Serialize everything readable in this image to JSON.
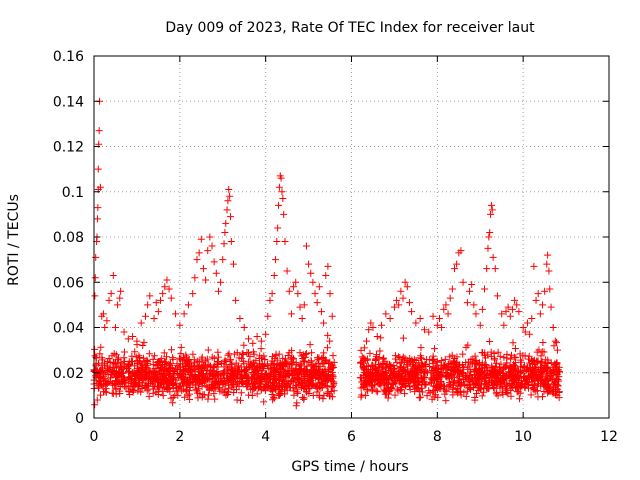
{
  "chart_data": {
    "type": "scatter",
    "title": "Day 009 of 2023, Rate Of TEC Index for receiver laut",
    "xlabel": "GPS time / hours",
    "ylabel": "ROTI / TECUs",
    "xlim": [
      0,
      12
    ],
    "ylim": [
      0,
      0.16
    ],
    "xticks": [
      0,
      2,
      4,
      6,
      8,
      10,
      12
    ],
    "xtick_labels": [
      "0",
      "2",
      "4",
      "6",
      "8",
      "10",
      "12"
    ],
    "yticks": [
      0,
      0.02,
      0.04,
      0.06,
      0.08,
      0.1,
      0.12,
      0.14,
      0.16
    ],
    "ytick_labels": [
      "0",
      "0.02",
      "0.04",
      "0.06",
      "0.08",
      "0.1",
      "0.12",
      "0.14",
      "0.16"
    ],
    "grid": true,
    "marker": "+",
    "color": "#ff0000",
    "data_gap_hours": [
      5.6,
      6.2
    ],
    "series": [
      {
        "name": "ROTI",
        "points": [
          [
            0.02,
            0.054
          ],
          [
            0.03,
            0.062
          ],
          [
            0.04,
            0.071
          ],
          [
            0.06,
            0.078
          ],
          [
            0.07,
            0.08
          ],
          [
            0.08,
            0.088
          ],
          [
            0.09,
            0.093
          ],
          [
            0.1,
            0.101
          ],
          [
            0.1,
            0.11
          ],
          [
            0.11,
            0.121
          ],
          [
            0.12,
            0.127
          ],
          [
            0.13,
            0.14
          ],
          [
            0.15,
            0.102
          ],
          [
            0.18,
            0.045
          ],
          [
            0.22,
            0.046
          ],
          [
            0.25,
            0.04
          ],
          [
            0.3,
            0.043
          ],
          [
            0.35,
            0.052
          ],
          [
            0.4,
            0.055
          ],
          [
            0.45,
            0.063
          ],
          [
            0.5,
            0.04
          ],
          [
            0.55,
            0.05
          ],
          [
            0.6,
            0.053
          ],
          [
            0.62,
            0.056
          ],
          [
            0.7,
            0.038
          ],
          [
            0.8,
            0.035
          ],
          [
            0.9,
            0.036
          ],
          [
            1.0,
            0.034
          ],
          [
            1.1,
            0.042
          ],
          [
            1.2,
            0.045
          ],
          [
            1.25,
            0.05
          ],
          [
            1.3,
            0.054
          ],
          [
            1.4,
            0.044
          ],
          [
            1.45,
            0.051
          ],
          [
            1.5,
            0.047
          ],
          [
            1.55,
            0.052
          ],
          [
            1.6,
            0.055
          ],
          [
            1.65,
            0.058
          ],
          [
            1.7,
            0.061
          ],
          [
            1.75,
            0.057
          ],
          [
            1.8,
            0.053
          ],
          [
            1.9,
            0.046
          ],
          [
            2.0,
            0.041
          ],
          [
            2.1,
            0.046
          ],
          [
            2.2,
            0.05
          ],
          [
            2.3,
            0.055
          ],
          [
            2.35,
            0.062
          ],
          [
            2.4,
            0.07
          ],
          [
            2.45,
            0.073
          ],
          [
            2.5,
            0.079
          ],
          [
            2.55,
            0.066
          ],
          [
            2.6,
            0.061
          ],
          [
            2.65,
            0.074
          ],
          [
            2.7,
            0.08
          ],
          [
            2.75,
            0.076
          ],
          [
            2.8,
            0.069
          ],
          [
            2.85,
            0.064
          ],
          [
            2.9,
            0.056
          ],
          [
            2.95,
            0.06
          ],
          [
            3.0,
            0.07
          ],
          [
            3.03,
            0.077
          ],
          [
            3.05,
            0.082
          ],
          [
            3.07,
            0.086
          ],
          [
            3.1,
            0.092
          ],
          [
            3.12,
            0.096
          ],
          [
            3.14,
            0.101
          ],
          [
            3.16,
            0.098
          ],
          [
            3.18,
            0.089
          ],
          [
            3.2,
            0.078
          ],
          [
            3.25,
            0.068
          ],
          [
            3.3,
            0.052
          ],
          [
            3.4,
            0.044
          ],
          [
            3.5,
            0.04
          ],
          [
            3.6,
            0.035
          ],
          [
            3.7,
            0.033
          ],
          [
            3.8,
            0.036
          ],
          [
            3.9,
            0.034
          ],
          [
            4.0,
            0.037
          ],
          [
            4.05,
            0.045
          ],
          [
            4.1,
            0.052
          ],
          [
            4.15,
            0.055
          ],
          [
            4.2,
            0.063
          ],
          [
            4.23,
            0.07
          ],
          [
            4.26,
            0.078
          ],
          [
            4.28,
            0.084
          ],
          [
            4.3,
            0.094
          ],
          [
            4.32,
            0.102
          ],
          [
            4.34,
            0.107
          ],
          [
            4.36,
            0.106
          ],
          [
            4.38,
            0.1
          ],
          [
            4.4,
            0.097
          ],
          [
            4.42,
            0.09
          ],
          [
            4.45,
            0.078
          ],
          [
            4.5,
            0.065
          ],
          [
            4.55,
            0.056
          ],
          [
            4.6,
            0.046
          ],
          [
            4.65,
            0.058
          ],
          [
            4.7,
            0.06
          ],
          [
            4.75,
            0.055
          ],
          [
            4.8,
            0.049
          ],
          [
            4.85,
            0.044
          ],
          [
            4.9,
            0.05
          ],
          [
            4.95,
            0.076
          ],
          [
            5.0,
            0.068
          ],
          [
            5.05,
            0.064
          ],
          [
            5.1,
            0.06
          ],
          [
            5.15,
            0.055
          ],
          [
            5.2,
            0.051
          ],
          [
            5.25,
            0.058
          ],
          [
            5.3,
            0.047
          ],
          [
            5.35,
            0.042
          ],
          [
            5.4,
            0.063
          ],
          [
            5.45,
            0.067
          ],
          [
            5.5,
            0.055
          ],
          [
            5.55,
            0.045
          ],
          [
            6.25,
            0.027
          ],
          [
            6.3,
            0.031
          ],
          [
            6.35,
            0.034
          ],
          [
            6.4,
            0.039
          ],
          [
            6.45,
            0.042
          ],
          [
            6.5,
            0.04
          ],
          [
            6.6,
            0.036
          ],
          [
            6.7,
            0.041
          ],
          [
            6.8,
            0.046
          ],
          [
            6.9,
            0.044
          ],
          [
            7.0,
            0.049
          ],
          [
            7.05,
            0.052
          ],
          [
            7.1,
            0.05
          ],
          [
            7.15,
            0.056
          ],
          [
            7.2,
            0.053
          ],
          [
            7.25,
            0.06
          ],
          [
            7.3,
            0.058
          ],
          [
            7.35,
            0.051
          ],
          [
            7.4,
            0.047
          ],
          [
            7.5,
            0.042
          ],
          [
            7.6,
            0.044
          ],
          [
            7.7,
            0.039
          ],
          [
            7.8,
            0.038
          ],
          [
            7.9,
            0.045
          ],
          [
            8.0,
            0.041
          ],
          [
            8.05,
            0.044
          ],
          [
            8.1,
            0.04
          ],
          [
            8.15,
            0.048
          ],
          [
            8.2,
            0.05
          ],
          [
            8.25,
            0.046
          ],
          [
            8.3,
            0.053
          ],
          [
            8.35,
            0.057
          ],
          [
            8.4,
            0.066
          ],
          [
            8.45,
            0.068
          ],
          [
            8.5,
            0.073
          ],
          [
            8.55,
            0.074
          ],
          [
            8.6,
            0.06
          ],
          [
            8.7,
            0.051
          ],
          [
            8.75,
            0.056
          ],
          [
            8.8,
            0.059
          ],
          [
            8.85,
            0.05
          ],
          [
            8.9,
            0.046
          ],
          [
            9.0,
            0.041
          ],
          [
            9.05,
            0.048
          ],
          [
            9.1,
            0.057
          ],
          [
            9.15,
            0.066
          ],
          [
            9.18,
            0.075
          ],
          [
            9.2,
            0.08
          ],
          [
            9.22,
            0.082
          ],
          [
            9.24,
            0.09
          ],
          [
            9.26,
            0.094
          ],
          [
            9.28,
            0.092
          ],
          [
            9.3,
            0.071
          ],
          [
            9.35,
            0.066
          ],
          [
            9.4,
            0.054
          ],
          [
            9.5,
            0.046
          ],
          [
            9.55,
            0.041
          ],
          [
            9.6,
            0.047
          ],
          [
            9.65,
            0.049
          ],
          [
            9.7,
            0.045
          ],
          [
            9.75,
            0.048
          ],
          [
            9.8,
            0.052
          ],
          [
            9.85,
            0.05
          ],
          [
            9.9,
            0.047
          ],
          [
            10.0,
            0.04
          ],
          [
            10.05,
            0.038
          ],
          [
            10.1,
            0.042
          ],
          [
            10.15,
            0.037
          ],
          [
            10.2,
            0.044
          ],
          [
            10.25,
            0.067
          ],
          [
            10.3,
            0.052
          ],
          [
            10.35,
            0.055
          ],
          [
            10.4,
            0.046
          ],
          [
            10.45,
            0.05
          ],
          [
            10.5,
            0.056
          ],
          [
            10.55,
            0.068
          ],
          [
            10.57,
            0.072
          ],
          [
            10.6,
            0.065
          ],
          [
            10.62,
            0.057
          ],
          [
            10.65,
            0.049
          ],
          [
            10.7,
            0.04
          ],
          [
            10.75,
            0.034
          ],
          [
            10.8,
            0.03
          ]
        ],
        "band": {
          "segments": [
            [
              0.0,
              5.6
            ],
            [
              6.2,
              10.85
            ]
          ],
          "typical_min": 0.005,
          "typical_max": 0.032,
          "median": 0.015,
          "approx_points_per_hour": 240
        }
      }
    ]
  }
}
